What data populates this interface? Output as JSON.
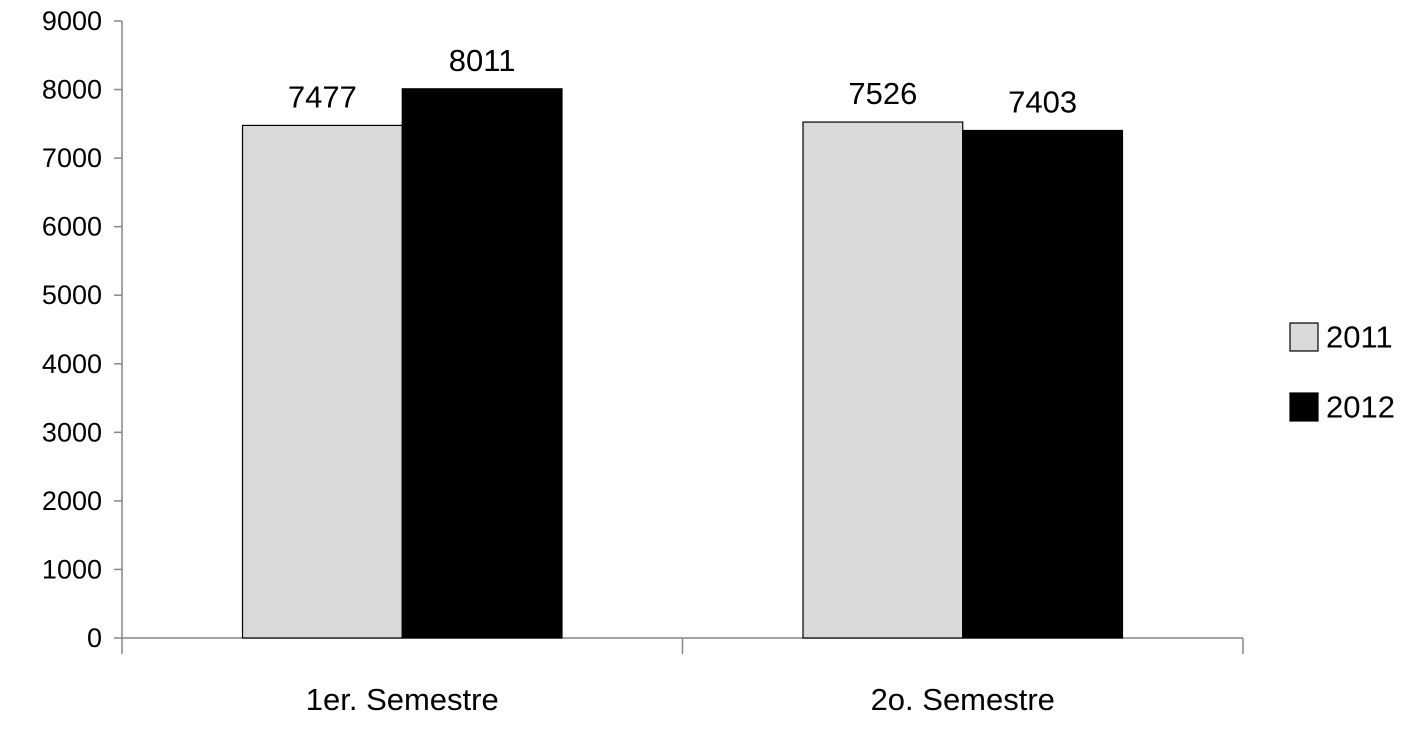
{
  "chart_data": {
    "type": "bar",
    "title": "",
    "xlabel": "",
    "ylabel": "",
    "categories": [
      "1er. Semestre",
      "2o. Semestre"
    ],
    "series": [
      {
        "name": "2011",
        "values": [
          7477,
          7526
        ],
        "color": "#d9d9d9"
      },
      {
        "name": "2012",
        "values": [
          8011,
          7403
        ],
        "color": "#000000"
      }
    ],
    "ylim": [
      0,
      9000
    ],
    "yticks": [
      0,
      1000,
      2000,
      3000,
      4000,
      5000,
      6000,
      7000,
      8000,
      9000
    ],
    "grid": false,
    "legend_position": "right",
    "data_labels": true
  }
}
